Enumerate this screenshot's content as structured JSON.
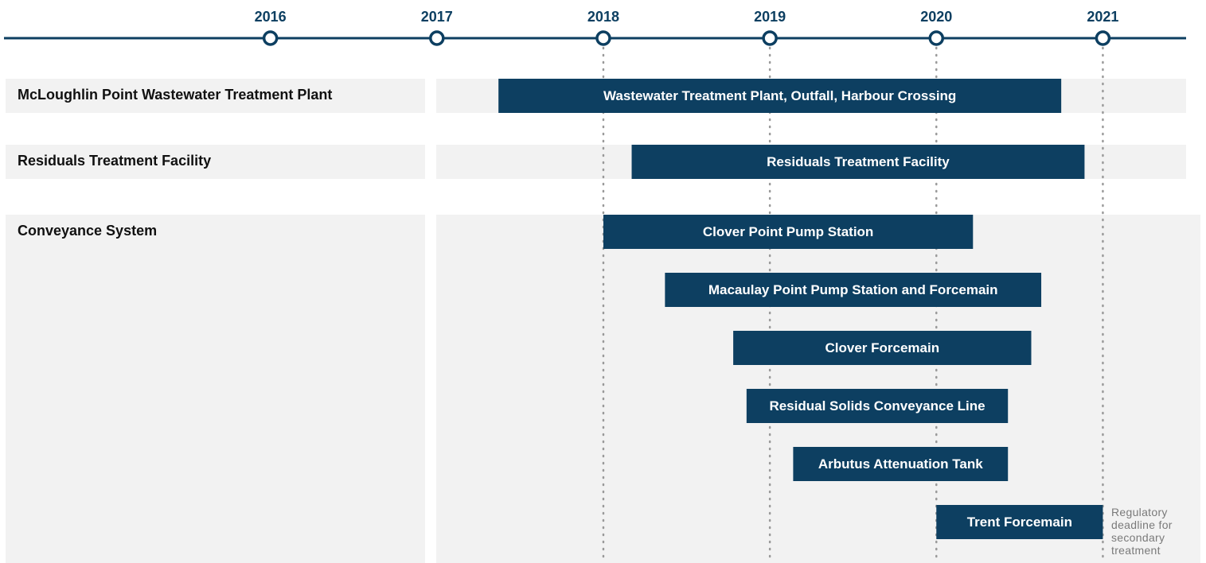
{
  "chart_data": {
    "type": "gantt",
    "color": "#0d3f61",
    "xlim": [
      2014.4,
      2021.5
    ],
    "xticks": [
      2016,
      2017,
      2018,
      2019,
      2020,
      2021
    ],
    "groups": [
      {
        "name": "McLoughlin Point Wastewater Treatment Plant",
        "tasks": [
          {
            "name": "Wastewater Treatment Plant, Outfall, Harbour Crossing",
            "start": 2017.37,
            "end": 2020.75
          }
        ]
      },
      {
        "name": "Residuals Treatment Facility",
        "tasks": [
          {
            "name": "Residuals Treatment Facility",
            "start": 2018.17,
            "end": 2020.89
          }
        ]
      },
      {
        "name": "Conveyance System",
        "tasks": [
          {
            "name": "Clover Point Pump Station",
            "start": 2018.0,
            "end": 2020.22
          },
          {
            "name": "Macaulay Point Pump Station and Forcemain",
            "start": 2018.37,
            "end": 2020.63
          },
          {
            "name": "Clover Forcemain",
            "start": 2018.78,
            "end": 2020.57
          },
          {
            "name": "Residual Solids Conveyance Line",
            "start": 2018.86,
            "end": 2020.43
          },
          {
            "name": "Arbutus Attenuation Tank",
            "start": 2019.14,
            "end": 2020.43
          },
          {
            "name": "Trent Forcemain",
            "start": 2020.0,
            "end": 2021.0
          }
        ]
      }
    ],
    "annotation": "Regulatory deadline for secondary treatment"
  }
}
